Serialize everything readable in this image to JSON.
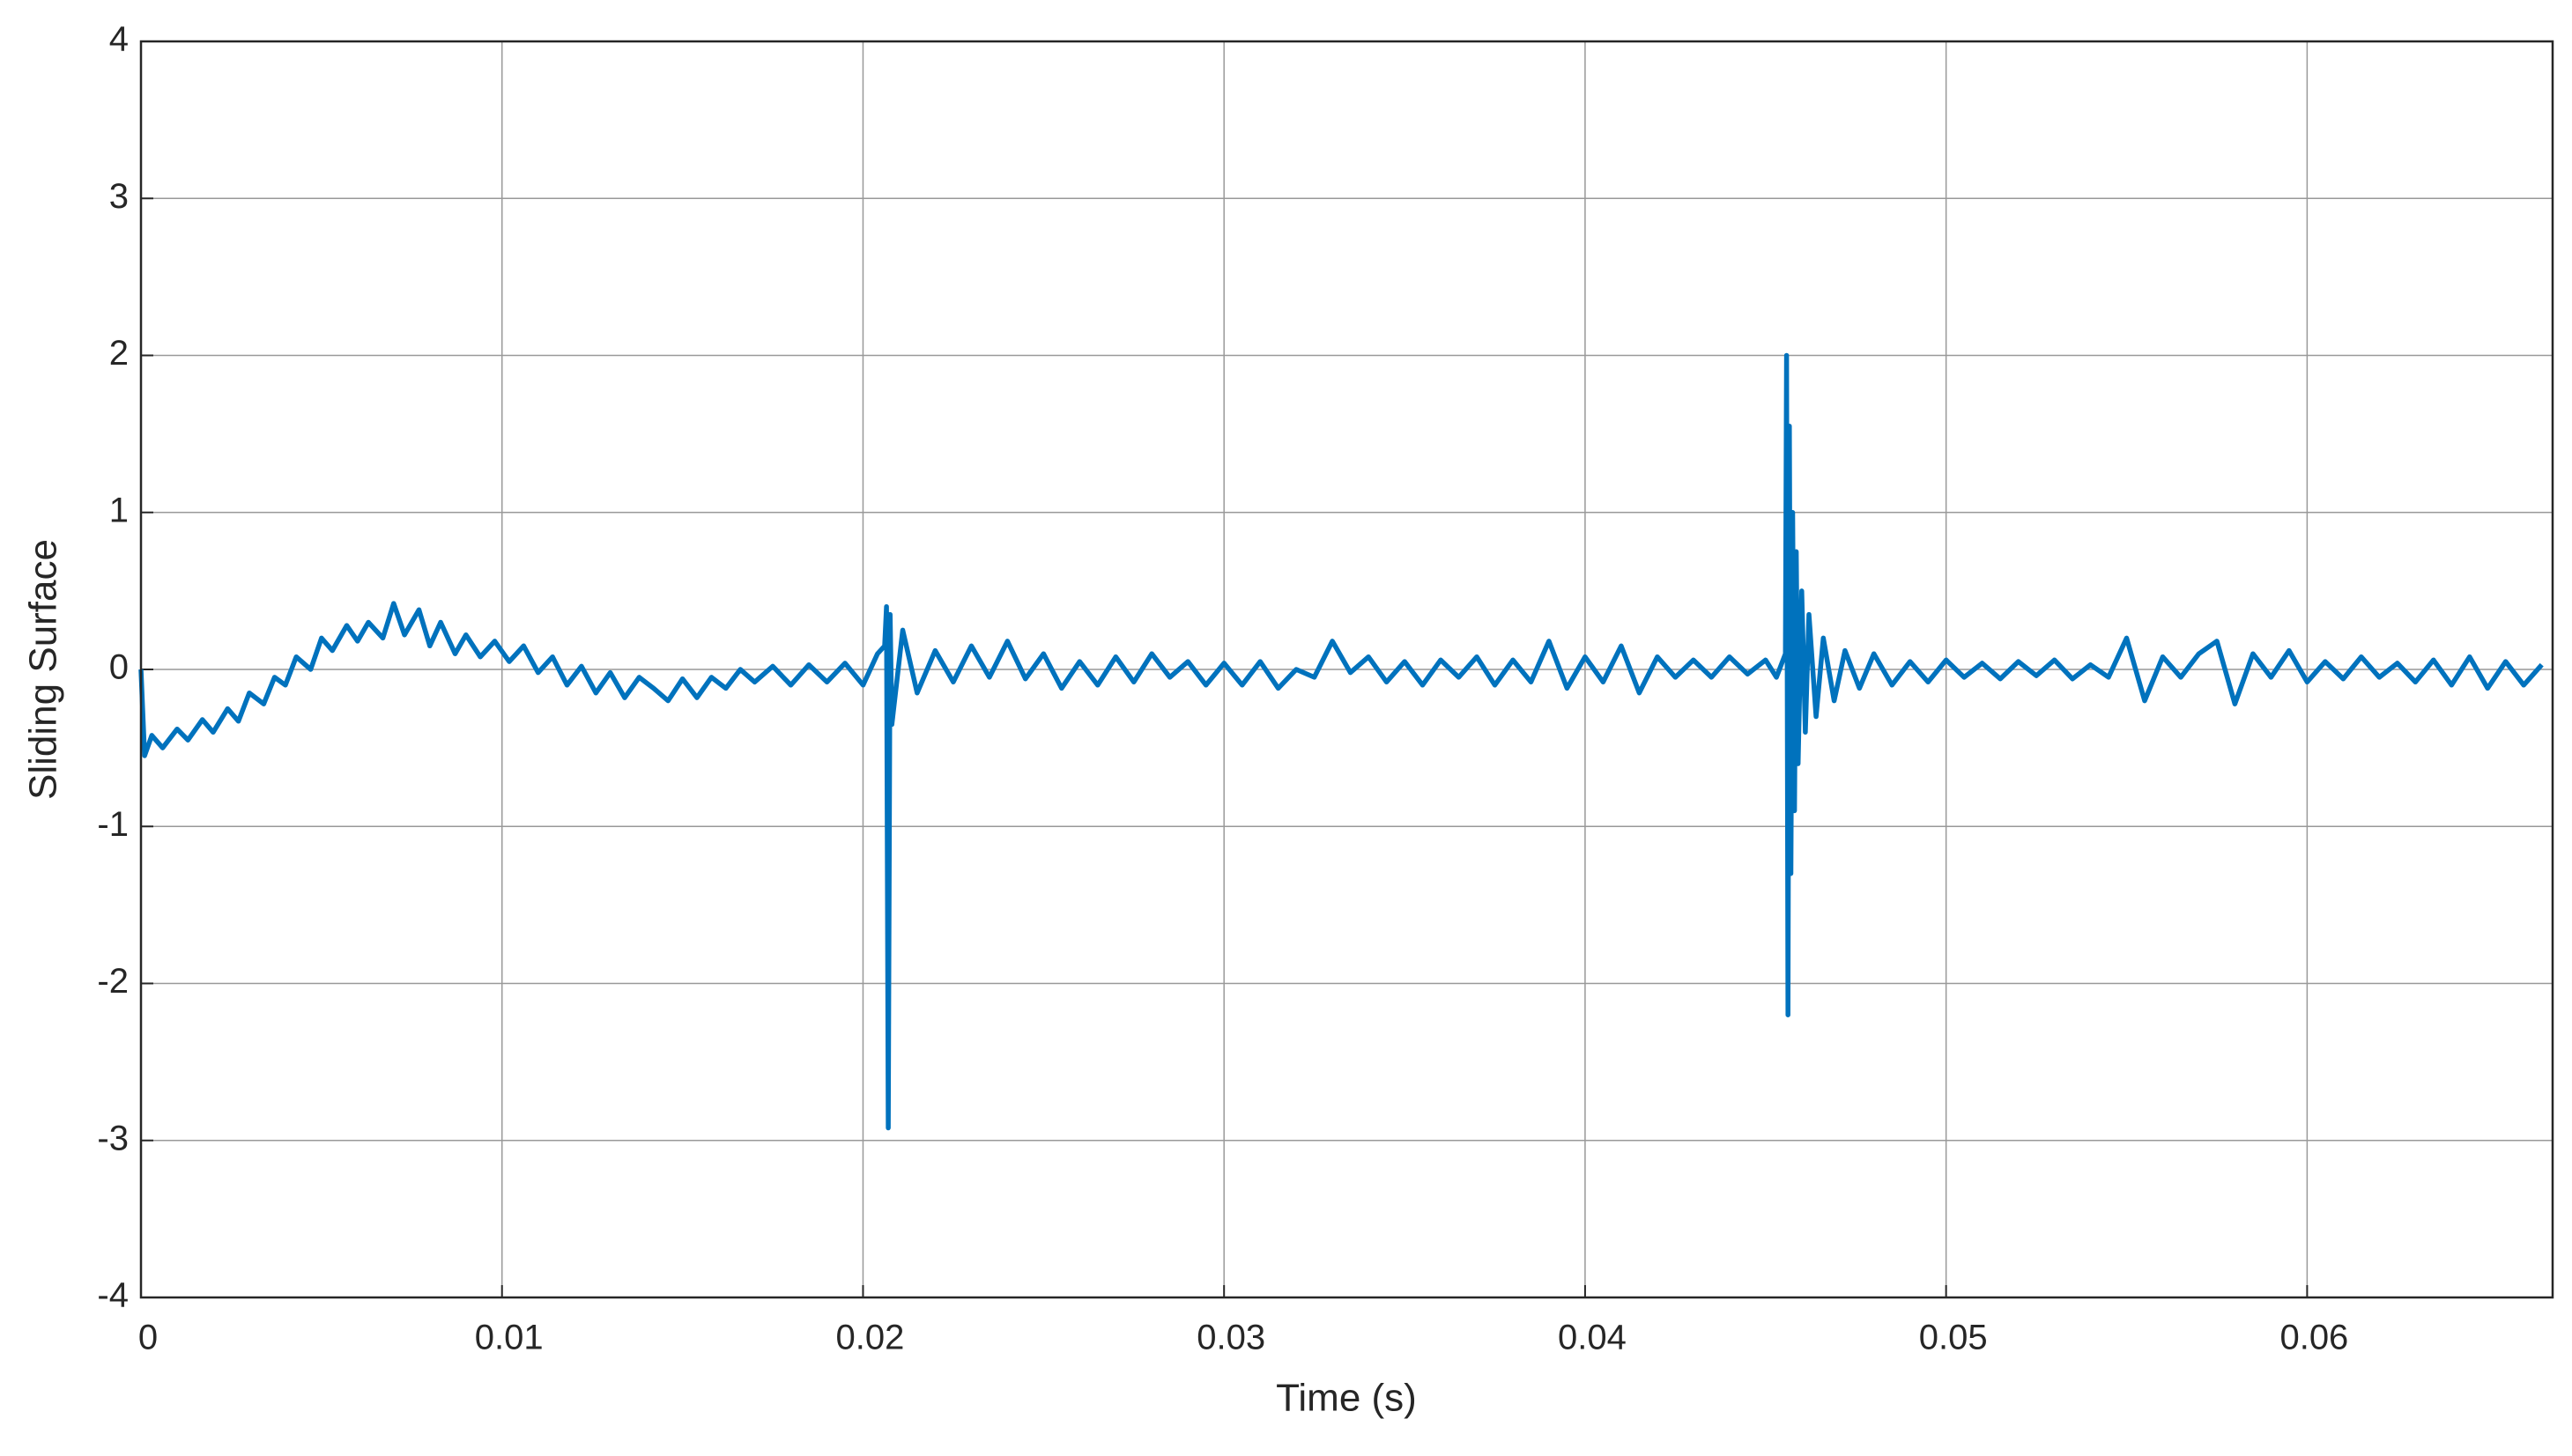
{
  "chart_data": {
    "type": "line",
    "xlabel": "Time (s)",
    "ylabel": "Sliding Surface",
    "xlim": [
      0,
      0.0668
    ],
    "ylim": [
      -4,
      4
    ],
    "xticks": [
      0,
      0.01,
      0.02,
      0.03,
      0.04,
      0.05,
      0.06
    ],
    "yticks": [
      -4,
      -3,
      -2,
      -1,
      0,
      1,
      2,
      3,
      4
    ],
    "grid": true,
    "series": [
      {
        "color": "#0072bd",
        "x": [
          0,
          0.0001,
          0.0003,
          0.0006,
          0.001,
          0.0013,
          0.0017,
          0.002,
          0.0024,
          0.0027,
          0.003,
          0.0034,
          0.0037,
          0.004,
          0.0043,
          0.0047,
          0.005,
          0.0053,
          0.0057,
          0.006,
          0.0063,
          0.0067,
          0.007,
          0.0073,
          0.0077,
          0.008,
          0.0083,
          0.0087,
          0.009,
          0.0094,
          0.0098,
          0.0102,
          0.0106,
          0.011,
          0.0114,
          0.0118,
          0.0122,
          0.0126,
          0.013,
          0.0134,
          0.0138,
          0.0142,
          0.0146,
          0.015,
          0.0154,
          0.0158,
          0.0162,
          0.0166,
          0.017,
          0.0175,
          0.018,
          0.0185,
          0.019,
          0.0195,
          0.02,
          0.0204,
          0.0206,
          0.02065,
          0.0207,
          0.02075,
          0.0208,
          0.0211,
          0.0215,
          0.022,
          0.0225,
          0.023,
          0.0235,
          0.024,
          0.0245,
          0.025,
          0.0255,
          0.026,
          0.0265,
          0.027,
          0.0275,
          0.028,
          0.0285,
          0.029,
          0.0295,
          0.03,
          0.0305,
          0.031,
          0.0315,
          0.032,
          0.0325,
          0.033,
          0.0335,
          0.034,
          0.0345,
          0.035,
          0.0355,
          0.036,
          0.0365,
          0.037,
          0.0375,
          0.038,
          0.0385,
          0.039,
          0.0395,
          0.04,
          0.0405,
          0.041,
          0.0415,
          0.042,
          0.0425,
          0.043,
          0.0435,
          0.044,
          0.0445,
          0.045,
          0.0453,
          0.04555,
          0.04558,
          0.04562,
          0.04566,
          0.0457,
          0.04575,
          0.0458,
          0.04585,
          0.0459,
          0.046,
          0.0461,
          0.0462,
          0.0464,
          0.0466,
          0.0469,
          0.0472,
          0.0476,
          0.048,
          0.0485,
          0.049,
          0.0495,
          0.05,
          0.0505,
          0.051,
          0.0515,
          0.052,
          0.0525,
          0.053,
          0.0535,
          0.054,
          0.0545,
          0.055,
          0.0555,
          0.056,
          0.0565,
          0.057,
          0.0575,
          0.058,
          0.0585,
          0.059,
          0.0595,
          0.06,
          0.0605,
          0.061,
          0.0615,
          0.062,
          0.0625,
          0.063,
          0.0635,
          0.064,
          0.0645,
          0.065,
          0.0655,
          0.066,
          0.0665
        ],
        "values": [
          0,
          -0.55,
          -0.42,
          -0.5,
          -0.38,
          -0.45,
          -0.32,
          -0.4,
          -0.25,
          -0.33,
          -0.15,
          -0.22,
          -0.05,
          -0.1,
          0.08,
          0.0,
          0.2,
          0.12,
          0.28,
          0.18,
          0.3,
          0.2,
          0.42,
          0.22,
          0.38,
          0.15,
          0.3,
          0.1,
          0.22,
          0.08,
          0.18,
          0.05,
          0.15,
          -0.02,
          0.08,
          -0.1,
          0.02,
          -0.15,
          -0.02,
          -0.18,
          -0.05,
          -0.12,
          -0.2,
          -0.06,
          -0.18,
          -0.05,
          -0.12,
          0.0,
          -0.08,
          0.02,
          -0.1,
          0.03,
          -0.08,
          0.04,
          -0.1,
          0.1,
          0.15,
          0.4,
          -2.92,
          0.35,
          -0.35,
          0.25,
          -0.15,
          0.12,
          -0.08,
          0.15,
          -0.05,
          0.18,
          -0.06,
          0.1,
          -0.12,
          0.05,
          -0.1,
          0.08,
          -0.08,
          0.1,
          -0.05,
          0.05,
          -0.1,
          0.04,
          -0.1,
          0.05,
          -0.12,
          0.0,
          -0.05,
          0.18,
          -0.02,
          0.08,
          -0.08,
          0.05,
          -0.1,
          0.06,
          -0.05,
          0.08,
          -0.1,
          0.06,
          -0.08,
          0.18,
          -0.12,
          0.08,
          -0.08,
          0.15,
          -0.15,
          0.08,
          -0.05,
          0.06,
          -0.05,
          0.08,
          -0.03,
          0.06,
          -0.05,
          0.1,
          2.0,
          -2.2,
          1.55,
          -1.3,
          1.0,
          -0.9,
          0.75,
          -0.6,
          0.5,
          -0.4,
          0.35,
          -0.3,
          0.2,
          -0.2,
          0.12,
          -0.12,
          0.1,
          -0.1,
          0.05,
          -0.08,
          0.06,
          -0.05,
          0.04,
          -0.06,
          0.05,
          -0.04,
          0.06,
          -0.06,
          0.03,
          -0.05,
          0.2,
          -0.2,
          0.08,
          -0.05,
          0.1,
          0.18,
          -0.22,
          0.1,
          -0.05,
          0.12,
          -0.08,
          0.05,
          -0.06,
          0.08,
          -0.05,
          0.04,
          -0.08,
          0.06,
          -0.1,
          0.08,
          -0.12,
          0.05,
          -0.1,
          0.03
        ]
      }
    ]
  }
}
